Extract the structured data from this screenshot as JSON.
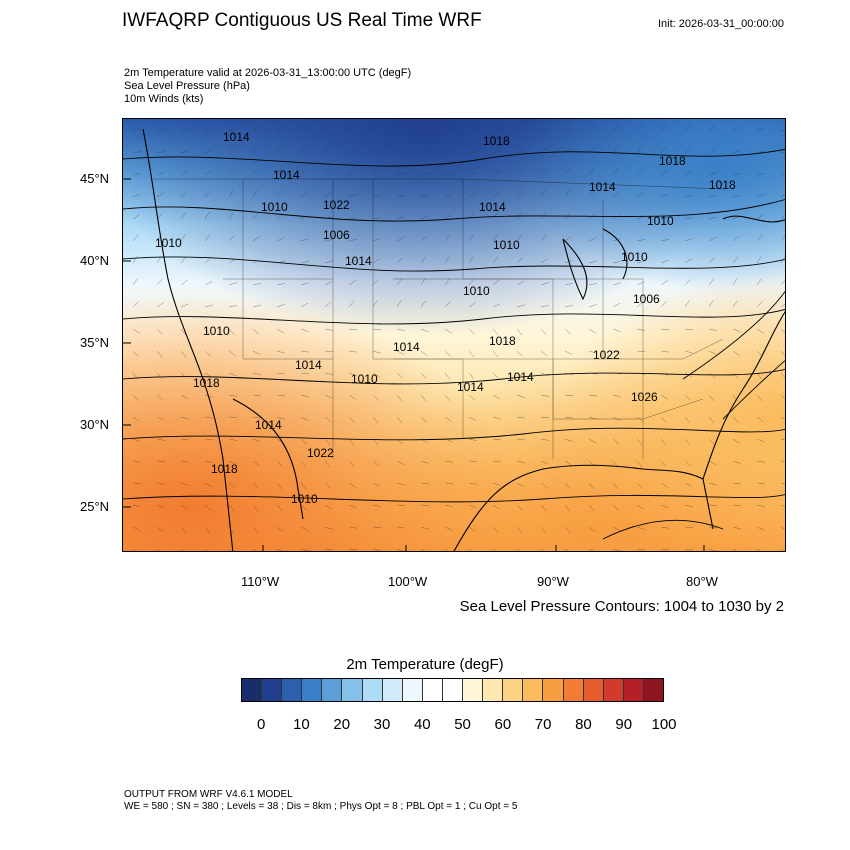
{
  "header": {
    "title": "IWFAQRP Contiguous US Real Time WRF",
    "init": "Init: 2026-03-31_00:00:00"
  },
  "fields": {
    "line1": "2m Temperature valid at 2026-03-31_13:00:00 UTC   (degF)",
    "line2": "Sea Level Pressure   (hPa)",
    "line3": "10m Winds   (kts)"
  },
  "map": {
    "lat_labels": [
      "45°N",
      "40°N",
      "35°N",
      "30°N",
      "25°N"
    ],
    "lon_labels": [
      "110°W",
      "100°W",
      "90°W",
      "80°W"
    ],
    "pressure_labels": [
      "1014",
      "1018",
      "1018",
      "1014",
      "1022",
      "1014",
      "1010",
      "1018",
      "1014",
      "1010",
      "1010",
      "1006",
      "1010",
      "1010",
      "1010",
      "1014",
      "1006",
      "1010",
      "1014",
      "1018",
      "1022",
      "1014",
      "1010",
      "1014",
      "1014",
      "1026",
      "1018",
      "1014",
      "1022",
      "1018",
      "1010"
    ]
  },
  "contour_note": "Sea Level Pressure Contours: 1004 to 1030 by 2",
  "colorbar": {
    "title": "2m Temperature  (degF)",
    "colors": [
      "#1a2d6b",
      "#213f8f",
      "#2c5fae",
      "#3a7fc7",
      "#5b9fd8",
      "#86c1ea",
      "#aedcf6",
      "#d2ecfa",
      "#eef7fc",
      "#ffffff",
      "#ffffff",
      "#fff5d8",
      "#fde8b0",
      "#fcd382",
      "#fbba5c",
      "#f89d41",
      "#f27c31",
      "#e55b2c",
      "#d13c2a",
      "#b51f27",
      "#8e1420"
    ],
    "ticks": [
      "0",
      "10",
      "20",
      "30",
      "40",
      "50",
      "60",
      "70",
      "80",
      "90",
      "100"
    ]
  },
  "footer": {
    "line1": "OUTPUT FROM WRF V4.6.1 MODEL",
    "line2": "WE = 580 ; SN = 380 ; Levels = 38 ; Dis = 8km ; Phys Opt = 8 ; PBL Opt = 1 ; Cu Opt = 5"
  }
}
